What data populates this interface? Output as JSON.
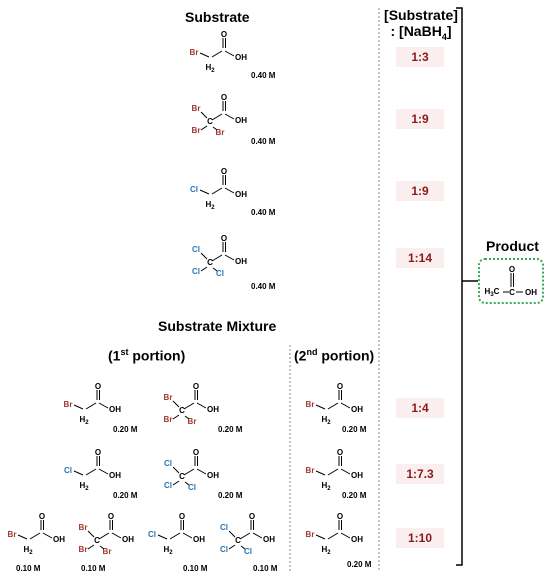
{
  "headers": {
    "substrate": "Substrate",
    "mixture": "Substrate Mixture",
    "portion1_pre": "(1",
    "portion1_sup": "st",
    "portion1_post": " portion)",
    "portion2_pre": "(2",
    "portion2_sup": "nd",
    "portion2_post": " portion)",
    "ratio_line1": "[Substrate]",
    "ratio_line2_pre": ": [NaBH",
    "ratio_line2_sub": "4",
    "ratio_line2_post": "]",
    "product": "Product"
  },
  "concentrations": {
    "single": "0.40 M",
    "pair": "0.20 M",
    "quad": "0.10 M"
  },
  "ratios": [
    "1:3",
    "1:9",
    "1:9",
    "1:14",
    "1:4",
    "1:7.3",
    "1:10"
  ],
  "atoms": {
    "br": "Br",
    "cl": "Cl",
    "c": "C",
    "o": "O",
    "oh": "OH",
    "h": "H",
    "h_sub": "2",
    "h3_sub": "3"
  },
  "colors": {
    "bromine": "#a0382c",
    "chlorine": "#2a74b8",
    "ratio_text": "#8b1a1a",
    "ratio_bg": "#fbeeee",
    "product_border": "#3aa857"
  }
}
